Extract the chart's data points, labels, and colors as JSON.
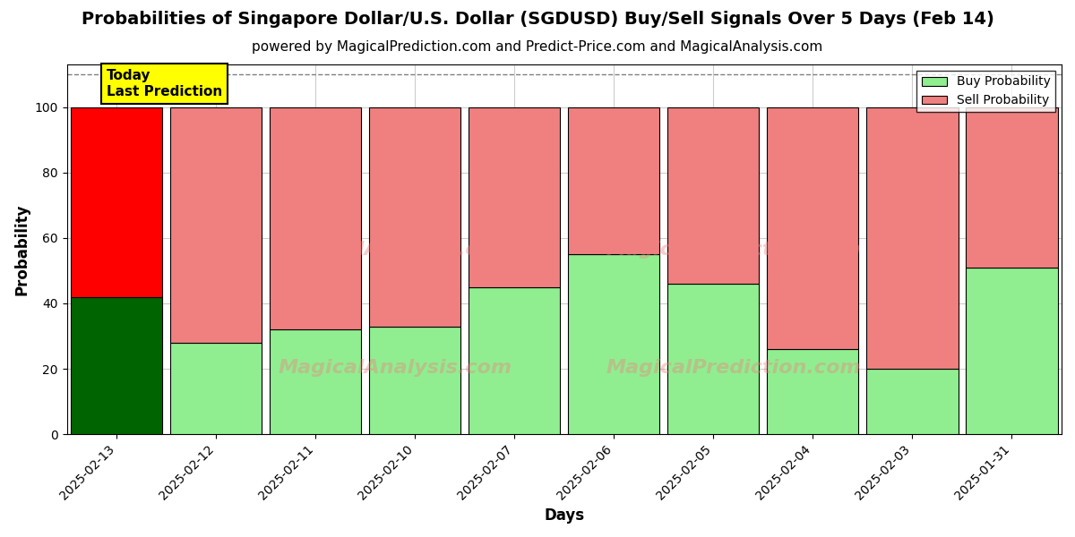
{
  "title": "Probabilities of Singapore Dollar/U.S. Dollar (SGDUSD) Buy/Sell Signals Over 5 Days (Feb 14)",
  "subtitle": "powered by MagicalPrediction.com and Predict-Price.com and MagicalAnalysis.com",
  "xlabel": "Days",
  "ylabel": "Probability",
  "categories": [
    "2025-02-13",
    "2025-02-12",
    "2025-02-11",
    "2025-02-10",
    "2025-02-07",
    "2025-02-06",
    "2025-02-05",
    "2025-02-04",
    "2025-02-03",
    "2025-01-31"
  ],
  "buy_values": [
    42,
    28,
    32,
    33,
    45,
    55,
    46,
    26,
    20,
    51
  ],
  "sell_values": [
    58,
    72,
    68,
    67,
    55,
    45,
    54,
    74,
    80,
    49
  ],
  "today_buy_color": "#006400",
  "today_sell_color": "#FF0000",
  "buy_color": "#90EE90",
  "sell_color": "#F08080",
  "today_label_bg": "#FFFF00",
  "today_label_text": "Today\nLast Prediction",
  "legend_buy_label": "Buy Probability",
  "legend_sell_label": "Sell Probability",
  "ylim": [
    0,
    113
  ],
  "yticks": [
    0,
    20,
    40,
    60,
    80,
    100
  ],
  "watermark_lines": [
    "MagicalAnalysis.com",
    "MagicalPrediction.com"
  ],
  "background_color": "#ffffff",
  "grid_color": "#cccccc",
  "title_fontsize": 14,
  "subtitle_fontsize": 11,
  "axis_label_fontsize": 12,
  "tick_fontsize": 10,
  "bar_width": 0.92
}
